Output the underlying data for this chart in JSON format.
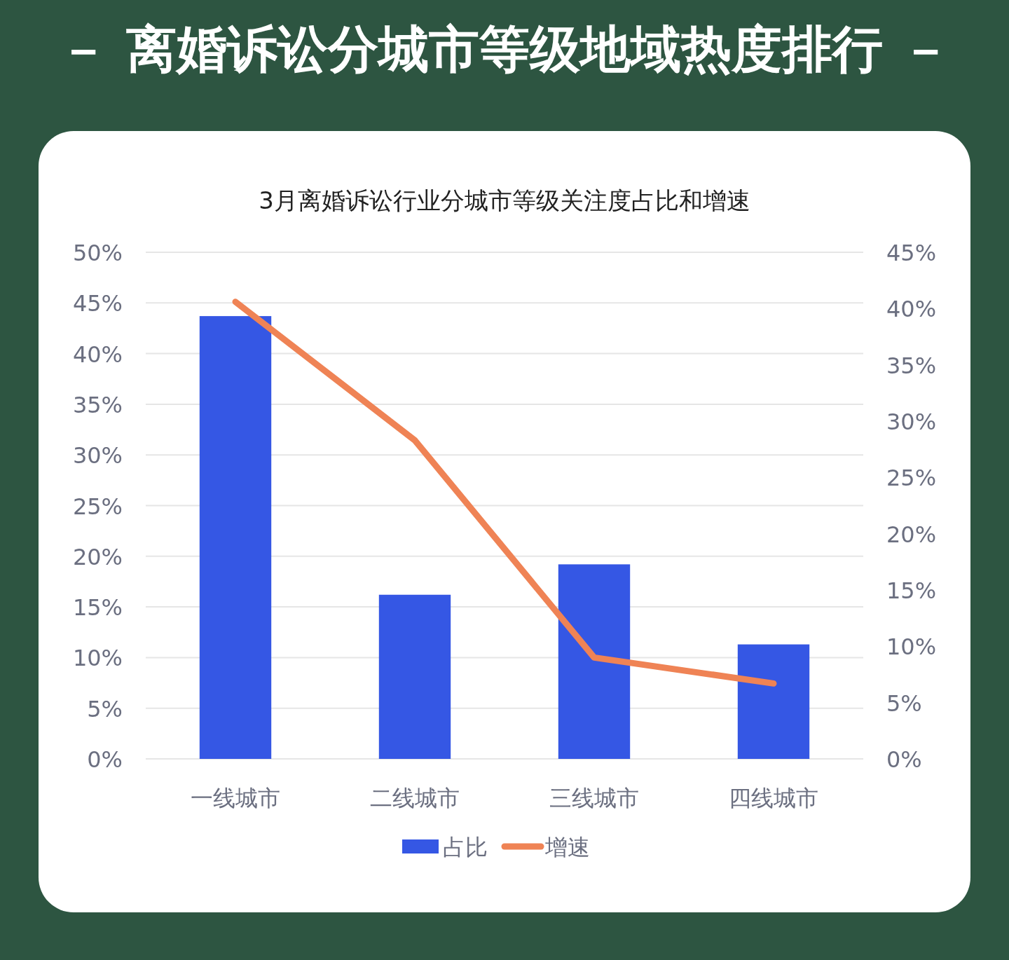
{
  "chart_data": {
    "type": "bar",
    "title": "－ 离婚诉讼分城市等级地域热度排行 －",
    "subtitle": "3月离婚诉讼行业分城市等级关注度占比和增速",
    "categories": [
      "一线城市",
      "二线城市",
      "三线城市",
      "四线城市"
    ],
    "series": [
      {
        "name": "占比",
        "color": "#3557e4",
        "values": [
          43.7,
          16.2,
          19.2,
          11.3
        ]
      },
      {
        "name": "增速",
        "type": "line",
        "axis": "y2",
        "color": "#ef8355",
        "values": [
          40.6,
          28.3,
          9.0,
          6.7
        ]
      }
    ],
    "ylim": [
      0,
      50
    ],
    "yticks": [
      {
        "value": 0,
        "label": "0%"
      },
      {
        "value": 5,
        "label": "5%"
      },
      {
        "value": 10,
        "label": "10%"
      },
      {
        "value": 15,
        "label": "15%"
      },
      {
        "value": 20,
        "label": "20%"
      },
      {
        "value": 25,
        "label": "25%"
      },
      {
        "value": 30,
        "label": "30%"
      },
      {
        "value": 35,
        "label": "35%"
      },
      {
        "value": 40,
        "label": "40%"
      },
      {
        "value": 45,
        "label": "45%"
      },
      {
        "value": 50,
        "label": "50%"
      }
    ],
    "y2lim": [
      0,
      45
    ],
    "y2ticks": [
      {
        "value": 0,
        "label": "0%"
      },
      {
        "value": 5,
        "label": "5%"
      },
      {
        "value": 10,
        "label": "10%"
      },
      {
        "value": 15,
        "label": "15%"
      },
      {
        "value": 20,
        "label": "20%"
      },
      {
        "value": 25,
        "label": "25%"
      },
      {
        "value": 30,
        "label": "30%"
      },
      {
        "value": 35,
        "label": "35%"
      },
      {
        "value": 40,
        "label": "40%"
      },
      {
        "value": 45,
        "label": "45%"
      }
    ],
    "grid": "y",
    "legend": "bottom"
  }
}
